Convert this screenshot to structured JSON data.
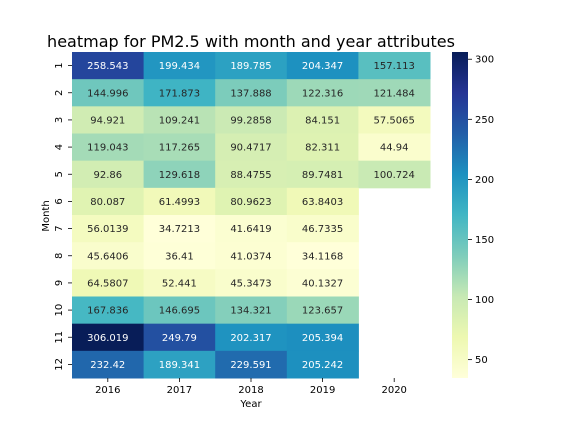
{
  "chart_data": {
    "type": "heatmap",
    "title": "heatmap for PM2.5 with month and year attributes",
    "xlabel": "Year",
    "ylabel": "Month",
    "x_categories": [
      "2016",
      "2017",
      "2018",
      "2019",
      "2020"
    ],
    "y_categories": [
      "1",
      "2",
      "3",
      "4",
      "5",
      "6",
      "7",
      "8",
      "9",
      "10",
      "11",
      "12"
    ],
    "values": [
      [
        258.543,
        199.434,
        189.785,
        204.347,
        157.113
      ],
      [
        144.996,
        171.873,
        137.888,
        122.316,
        121.484
      ],
      [
        94.921,
        109.241,
        99.2858,
        84.151,
        57.5065
      ],
      [
        119.043,
        117.265,
        90.4717,
        82.311,
        44.94
      ],
      [
        92.86,
        129.618,
        88.4755,
        89.7481,
        100.724
      ],
      [
        80.087,
        61.4993,
        80.9623,
        63.8403,
        null
      ],
      [
        56.0139,
        34.7213,
        41.6419,
        46.7335,
        null
      ],
      [
        45.6406,
        36.41,
        41.0374,
        34.1168,
        null
      ],
      [
        64.5807,
        52.441,
        45.3473,
        40.1327,
        null
      ],
      [
        167.836,
        146.695,
        134.321,
        123.657,
        null
      ],
      [
        306.019,
        249.79,
        202.317,
        205.394,
        null
      ],
      [
        232.42,
        189.341,
        229.591,
        205.242,
        null
      ]
    ],
    "cell_labels": [
      [
        "258.543",
        "199.434",
        "189.785",
        "204.347",
        "157.113"
      ],
      [
        "144.996",
        "171.873",
        "137.888",
        "122.316",
        "121.484"
      ],
      [
        "94.921",
        "109.241",
        "99.2858",
        "84.151",
        "57.5065"
      ],
      [
        "119.043",
        "117.265",
        "90.4717",
        "82.311",
        "44.94"
      ],
      [
        "92.86",
        "129.618",
        "88.4755",
        "89.7481",
        "100.724"
      ],
      [
        "80.087",
        "61.4993",
        "80.9623",
        "63.8403",
        ""
      ],
      [
        "56.0139",
        "34.7213",
        "41.6419",
        "46.7335",
        ""
      ],
      [
        "45.6406",
        "36.41",
        "41.0374",
        "34.1168",
        ""
      ],
      [
        "64.5807",
        "52.441",
        "45.3473",
        "40.1327",
        ""
      ],
      [
        "167.836",
        "146.695",
        "134.321",
        "123.657",
        ""
      ],
      [
        "306.019",
        "249.79",
        "202.317",
        "205.394",
        ""
      ],
      [
        "232.42",
        "189.341",
        "229.591",
        "205.242",
        ""
      ]
    ],
    "colormap": "YlGnBu",
    "colormap_stops": [
      "#ffffd9",
      "#edf8b1",
      "#c7e9b4",
      "#7fcdbb",
      "#41b6c4",
      "#1d91c0",
      "#225ea8",
      "#253494",
      "#081d58"
    ],
    "vmin": 34.7213,
    "vmax": 306.019,
    "colorbar_ticks": [
      50,
      100,
      150,
      200,
      250,
      300
    ],
    "colorbar_tick_labels": [
      "50",
      "100",
      "150",
      "200",
      "250",
      "300"
    ],
    "grid": false,
    "legend": "colorbar-right"
  }
}
